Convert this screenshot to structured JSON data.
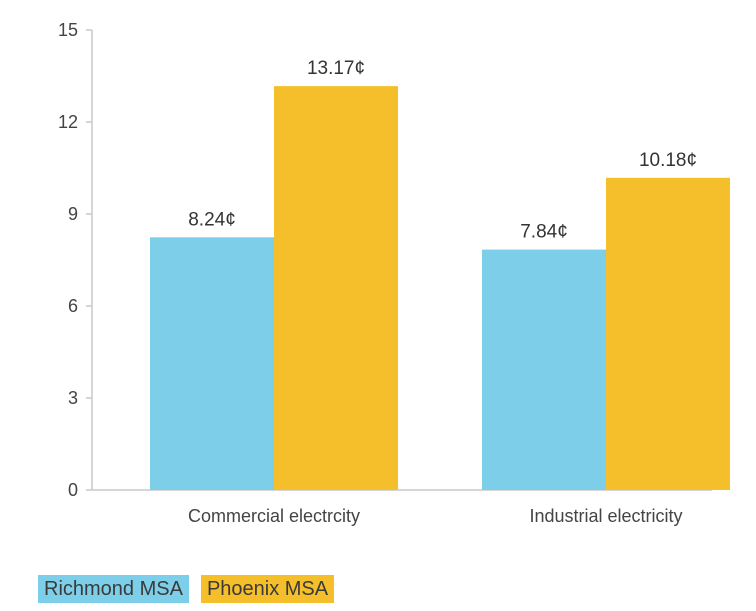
{
  "chart_data": {
    "type": "bar",
    "title": "",
    "xlabel": "",
    "ylabel": "",
    "ylim": [
      0,
      15
    ],
    "yticks": [
      0,
      3,
      6,
      9,
      12,
      15
    ],
    "ytick_labels": [
      "0",
      "3",
      "6",
      "9",
      "12",
      "15"
    ],
    "grid": false,
    "legend_position": "bottom-left",
    "categories": [
      "Commercial electrcity",
      "Industrial electricity"
    ],
    "series": [
      {
        "name": "Richmond MSA",
        "color": "#7dcfe9",
        "values": [
          8.24,
          7.84
        ],
        "labels": [
          "8.24¢",
          "7.84¢"
        ]
      },
      {
        "name": "Phoenix MSA",
        "color": "#f4bf2a",
        "values": [
          13.17,
          10.18
        ],
        "labels": [
          "13.17¢",
          "10.18¢"
        ]
      }
    ]
  }
}
